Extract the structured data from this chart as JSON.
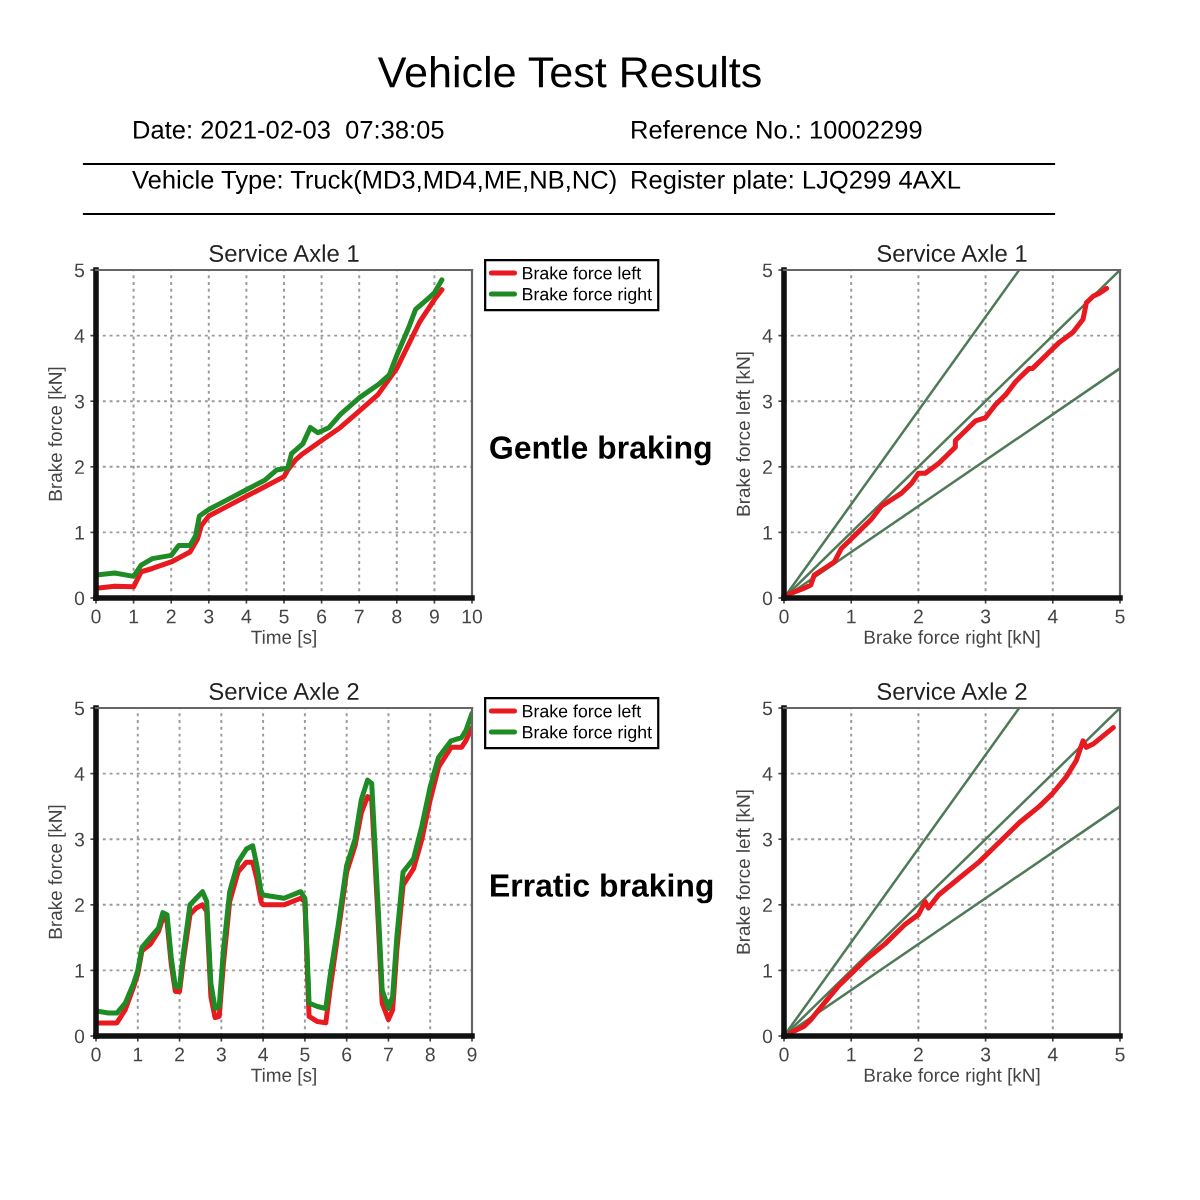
{
  "chart_data": [
    {
      "type": "other",
      "title": "Vehicle Test Results",
      "annotations": [
        "Date: 2021-02-03  07:38:05",
        "Reference No.: 10002299",
        "Vehicle Type: Truck(MD3,MD4,ME,NB,NC)",
        "Register plate: LJQ299 4AXL"
      ]
    },
    {
      "type": "line",
      "title": "Service Axle 1",
      "xlabel": "Time [s]",
      "ylabel": "Brake force [kN]",
      "xlim": [
        0,
        10
      ],
      "ylim": [
        0,
        5
      ],
      "xticks": [
        0,
        1,
        2,
        3,
        4,
        5,
        6,
        7,
        8,
        9,
        10
      ],
      "yticks": [
        0,
        1,
        2,
        3,
        4,
        5
      ],
      "grid": true,
      "legend": "top right",
      "annotations": [
        "Gentle braking"
      ],
      "series": [
        {
          "name": "Brake force left",
          "color": "#e8191f",
          "x": [
            0,
            0.5,
            1.0,
            1.2,
            1.5,
            2.0,
            2.5,
            2.7,
            2.8,
            3.0,
            3.5,
            4.0,
            4.5,
            5.0,
            5.1,
            5.3,
            5.5,
            6.0,
            6.5,
            7.0,
            7.5,
            8.0,
            8.3,
            8.6,
            9.0,
            9.2
          ],
          "values": [
            0.15,
            0.18,
            0.17,
            0.4,
            0.45,
            0.55,
            0.7,
            0.9,
            1.1,
            1.25,
            1.4,
            1.55,
            1.7,
            1.85,
            1.95,
            2.1,
            2.2,
            2.4,
            2.6,
            2.85,
            3.1,
            3.5,
            3.85,
            4.2,
            4.55,
            4.7
          ]
        },
        {
          "name": "Brake force right",
          "color": "#1e8b24",
          "x": [
            0,
            0.5,
            1.0,
            1.2,
            1.5,
            2.0,
            2.2,
            2.5,
            2.65,
            2.75,
            3.0,
            3.5,
            4.0,
            4.5,
            4.8,
            5.1,
            5.2,
            5.5,
            5.7,
            5.9,
            6.2,
            6.5,
            7.0,
            7.5,
            7.8,
            8.0,
            8.3,
            8.5,
            8.8,
            9.0,
            9.2
          ],
          "values": [
            0.35,
            0.38,
            0.33,
            0.5,
            0.6,
            0.65,
            0.8,
            0.8,
            0.95,
            1.25,
            1.35,
            1.5,
            1.65,
            1.8,
            1.95,
            1.98,
            2.2,
            2.35,
            2.6,
            2.52,
            2.6,
            2.8,
            3.05,
            3.25,
            3.4,
            3.7,
            4.1,
            4.4,
            4.55,
            4.65,
            4.85
          ]
        }
      ]
    },
    {
      "type": "line",
      "title": "Service Axle 1",
      "xlabel": "Brake force right [kN]",
      "ylabel": "Brake force left [kN]",
      "xlim": [
        0,
        5
      ],
      "ylim": [
        0,
        5
      ],
      "xticks": [
        0,
        1,
        2,
        3,
        4,
        5
      ],
      "yticks": [
        0,
        1,
        2,
        3,
        4,
        5
      ],
      "grid": true,
      "series": [
        {
          "color": "#4f7a57",
          "x": [
            0,
            3.5
          ],
          "values": [
            0,
            5
          ]
        },
        {
          "color": "#4f7a57",
          "x": [
            0,
            5
          ],
          "values": [
            0,
            5
          ]
        },
        {
          "color": "#4f7a57",
          "x": [
            0,
            5
          ],
          "values": [
            0,
            3.5
          ]
        },
        {
          "color": "#e8191f",
          "x": [
            0.05,
            0.3,
            0.4,
            0.45,
            0.6,
            0.75,
            0.85,
            1.0,
            1.1,
            1.3,
            1.45,
            1.6,
            1.75,
            1.9,
            2.0,
            2.1,
            2.3,
            2.45,
            2.55,
            2.55,
            2.7,
            2.85,
            3.0,
            3.15,
            3.3,
            3.45,
            3.65,
            3.7,
            3.9,
            4.1,
            4.3,
            4.45,
            4.5,
            4.6,
            4.7,
            4.8
          ],
          "values": [
            0.05,
            0.15,
            0.2,
            0.35,
            0.45,
            0.55,
            0.75,
            0.9,
            1.0,
            1.2,
            1.4,
            1.5,
            1.6,
            1.75,
            1.9,
            1.9,
            2.05,
            2.2,
            2.3,
            2.4,
            2.55,
            2.7,
            2.75,
            2.95,
            3.1,
            3.3,
            3.5,
            3.5,
            3.7,
            3.9,
            4.05,
            4.25,
            4.5,
            4.6,
            4.65,
            4.72
          ]
        }
      ]
    },
    {
      "type": "line",
      "title": "Service Axle 2",
      "xlabel": "Time [s]",
      "ylabel": "Brake force [kN]",
      "xlim": [
        0,
        9
      ],
      "ylim": [
        0,
        5
      ],
      "xticks": [
        0,
        1,
        2,
        3,
        4,
        5,
        6,
        7,
        8,
        9
      ],
      "yticks": [
        0,
        1,
        2,
        3,
        4,
        5
      ],
      "grid": true,
      "legend": "top right",
      "annotations": [
        "Erratic braking"
      ],
      "series": [
        {
          "name": "Brake force left",
          "color": "#e8191f",
          "x": [
            0,
            0.5,
            0.7,
            0.9,
            1.0,
            1.1,
            1.3,
            1.5,
            1.6,
            1.7,
            1.8,
            1.9,
            2.0,
            2.1,
            2.25,
            2.4,
            2.55,
            2.65,
            2.75,
            2.85,
            2.95,
            3.05,
            3.2,
            3.4,
            3.6,
            3.75,
            3.85,
            3.95,
            4.0,
            4.5,
            4.9,
            5.0,
            5.1,
            5.3,
            5.5,
            5.6,
            5.8,
            6.0,
            6.2,
            6.35,
            6.5,
            6.6,
            6.75,
            6.85,
            7.0,
            7.1,
            7.2,
            7.35,
            7.6,
            7.8,
            8.0,
            8.2,
            8.5,
            8.75,
            8.85,
            9.0
          ],
          "values": [
            0.2,
            0.2,
            0.4,
            0.75,
            0.95,
            1.3,
            1.4,
            1.6,
            1.8,
            1.75,
            1.1,
            0.68,
            0.68,
            1.2,
            1.85,
            1.95,
            2.0,
            1.9,
            0.6,
            0.28,
            0.3,
            1.1,
            2.05,
            2.5,
            2.65,
            2.65,
            2.4,
            2.05,
            2.0,
            2.0,
            2.1,
            2.05,
            0.3,
            0.22,
            0.2,
            0.7,
            1.6,
            2.5,
            2.9,
            3.4,
            3.65,
            3.6,
            1.8,
            0.5,
            0.25,
            0.4,
            1.3,
            2.3,
            2.55,
            3.0,
            3.6,
            4.1,
            4.4,
            4.4,
            4.5,
            4.7
          ]
        },
        {
          "name": "Brake force right",
          "color": "#1e8b24",
          "x": [
            0,
            0.3,
            0.5,
            0.7,
            0.9,
            1.0,
            1.1,
            1.3,
            1.5,
            1.6,
            1.7,
            1.8,
            1.9,
            2.0,
            2.1,
            2.25,
            2.4,
            2.55,
            2.65,
            2.75,
            2.85,
            2.95,
            3.05,
            3.2,
            3.4,
            3.6,
            3.75,
            3.85,
            3.95,
            4.0,
            4.5,
            4.9,
            5.0,
            5.1,
            5.3,
            5.5,
            5.6,
            5.8,
            6.0,
            6.2,
            6.35,
            6.5,
            6.6,
            6.75,
            6.85,
            7.0,
            7.1,
            7.2,
            7.35,
            7.6,
            7.8,
            8.0,
            8.2,
            8.5,
            8.75,
            8.85,
            9.0
          ],
          "values": [
            0.38,
            0.35,
            0.35,
            0.5,
            0.8,
            1.0,
            1.35,
            1.5,
            1.65,
            1.88,
            1.85,
            1.2,
            0.75,
            0.75,
            1.3,
            2.0,
            2.1,
            2.2,
            2.05,
            0.8,
            0.42,
            0.45,
            1.3,
            2.2,
            2.65,
            2.85,
            2.9,
            2.6,
            2.2,
            2.15,
            2.1,
            2.2,
            2.1,
            0.5,
            0.45,
            0.42,
            0.9,
            1.7,
            2.6,
            3.0,
            3.6,
            3.9,
            3.85,
            2.0,
            0.7,
            0.42,
            0.6,
            1.5,
            2.5,
            2.7,
            3.2,
            3.8,
            4.25,
            4.5,
            4.55,
            4.65,
            4.92
          ]
        }
      ]
    },
    {
      "type": "line",
      "title": "Service Axle 2",
      "xlabel": "Brake force right [kN]",
      "ylabel": "Brake force left [kN]",
      "xlim": [
        0,
        5
      ],
      "ylim": [
        0,
        5
      ],
      "xticks": [
        0,
        1,
        2,
        3,
        4,
        5
      ],
      "yticks": [
        0,
        1,
        2,
        3,
        4,
        5
      ],
      "grid": true,
      "series": [
        {
          "color": "#4f7a57",
          "x": [
            0,
            3.5
          ],
          "values": [
            0,
            5
          ]
        },
        {
          "color": "#4f7a57",
          "x": [
            0,
            5
          ],
          "values": [
            0,
            5
          ]
        },
        {
          "color": "#4f7a57",
          "x": [
            0,
            5
          ],
          "values": [
            0,
            3.5
          ]
        },
        {
          "color": "#e8191f",
          "x": [
            0.1,
            0.3,
            0.4,
            0.6,
            0.8,
            1.0,
            1.2,
            1.5,
            1.8,
            2.0,
            2.1,
            2.15,
            2.3,
            2.6,
            2.9,
            3.2,
            3.5,
            3.8,
            4.0,
            4.2,
            4.35,
            4.45,
            4.5,
            4.6,
            4.9
          ],
          "values": [
            0.05,
            0.15,
            0.25,
            0.5,
            0.75,
            0.95,
            1.15,
            1.4,
            1.7,
            1.85,
            2.05,
            1.95,
            2.15,
            2.4,
            2.65,
            2.95,
            3.25,
            3.5,
            3.7,
            3.95,
            4.2,
            4.5,
            4.4,
            4.45,
            4.7
          ]
        }
      ]
    }
  ]
}
